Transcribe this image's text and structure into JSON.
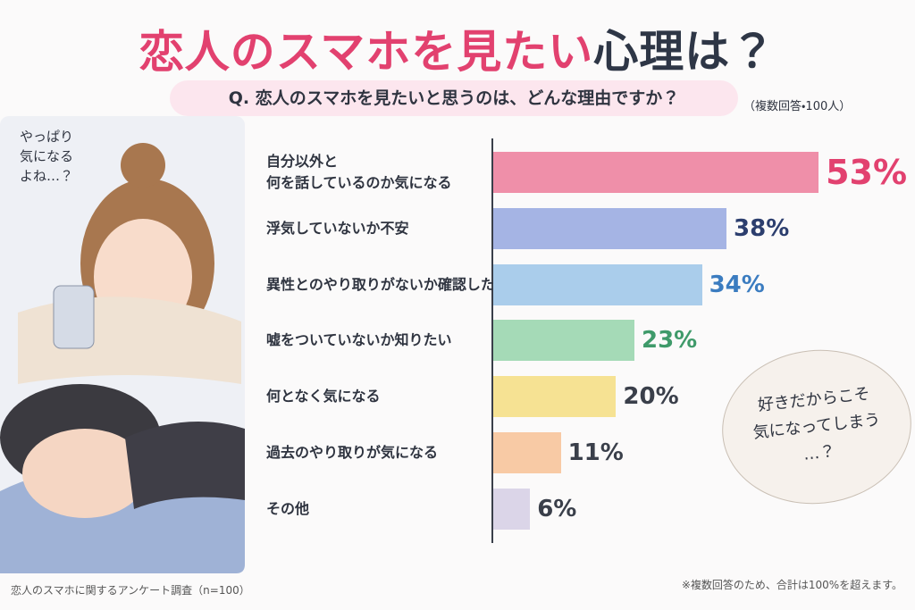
{
  "title": {
    "highlight": "恋人のスマホを見たい",
    "rest": "心理は？"
  },
  "question": "Q. 恋人のスマホを見たいと思うのは、どんな理由ですか？",
  "note": "（複数回答・100人）",
  "bubble_left": "やっぱり\n気になる\nよね…？",
  "bubble_right": "好きだからこそ\n気になってしまう\n…？",
  "source": "恋人のスマホに関するアンケート調査（n=100）",
  "footnote": "※複数回答のため、合計は100%を超えます。",
  "chart_data": {
    "type": "bar",
    "orientation": "horizontal",
    "categories": [
      "自分以外と\n何を話しているのか気になる",
      "浮気していないか不安",
      "異性とのやり取りがないか確認したい",
      "嘘をついていないか知りたい",
      "何となく気になる",
      "過去のやり取りが気になる",
      "その他"
    ],
    "values": [
      53,
      38,
      34,
      23,
      20,
      11,
      6
    ],
    "value_labels": [
      "53%",
      "38%",
      "34%",
      "23%",
      "20%",
      "11%",
      "6%"
    ],
    "colors": [
      "#ef8fa9",
      "#a5b4e4",
      "#aacdeb",
      "#a5dab7",
      "#f6e293",
      "#f8caa5",
      "#dbd5e8"
    ],
    "label_colors": [
      "#e2416f",
      "#2c3e6e",
      "#3b7cc0",
      "#3f9a6a",
      "#3a3f4a",
      "#3a3f4a",
      "#3a3f4a"
    ]
  }
}
